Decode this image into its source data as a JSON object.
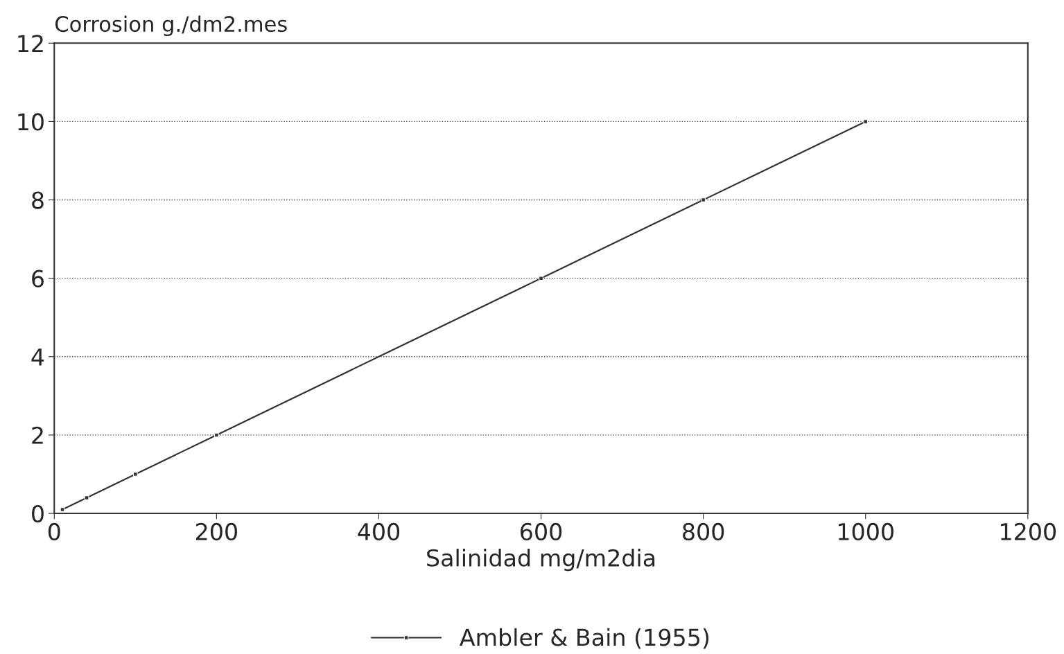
{
  "chart_data": {
    "type": "line",
    "ylabel": "Corrosion g./dm2.mes",
    "xlabel": "Salinidad mg/m2dia",
    "x": [
      10,
      40,
      100,
      200,
      600,
      800,
      1000
    ],
    "series": [
      {
        "name": "Ambler & Bain (1955)",
        "color": "#333333",
        "values": [
          0.1,
          0.4,
          1,
          2,
          6,
          8,
          10
        ]
      }
    ],
    "xlim": [
      0,
      1200
    ],
    "xticks": [
      0,
      200,
      400,
      600,
      800,
      1000,
      1200
    ],
    "ylim": [
      0,
      12
    ],
    "yticks": [
      0,
      2,
      4,
      6,
      8,
      10,
      12
    ],
    "grid": "y",
    "legend": "bottom",
    "marker": "square",
    "line_style": "solid"
  }
}
